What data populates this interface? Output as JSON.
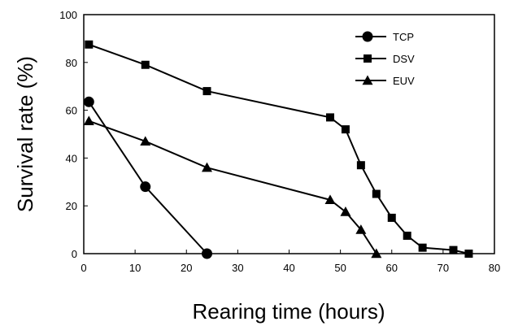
{
  "chart_data": {
    "type": "line",
    "xlabel": "Rearing time (hours)",
    "ylabel": "Survival rate (%)",
    "xlim": [
      0,
      80
    ],
    "ylim": [
      0,
      100
    ],
    "xticks": [
      0,
      10,
      20,
      30,
      40,
      50,
      60,
      70,
      80
    ],
    "yticks": [
      0,
      20,
      40,
      60,
      80,
      100
    ],
    "grid": false,
    "legend_position": "top-right",
    "series": [
      {
        "name": "TCP",
        "marker": "circle",
        "x": [
          1,
          12,
          24
        ],
        "y": [
          63.5,
          28,
          0
        ]
      },
      {
        "name": "DSV",
        "marker": "square",
        "x": [
          1,
          12,
          24,
          48,
          51,
          54,
          57,
          60,
          63,
          66,
          72,
          75
        ],
        "y": [
          87.5,
          79,
          68,
          57,
          52,
          37,
          25,
          15,
          7.5,
          2.5,
          1.5,
          0
        ]
      },
      {
        "name": "EUV",
        "marker": "triangle",
        "x": [
          1,
          12,
          24,
          48,
          51,
          54,
          57
        ],
        "y": [
          55.5,
          47,
          36,
          22.5,
          17.5,
          10,
          0
        ]
      }
    ]
  }
}
